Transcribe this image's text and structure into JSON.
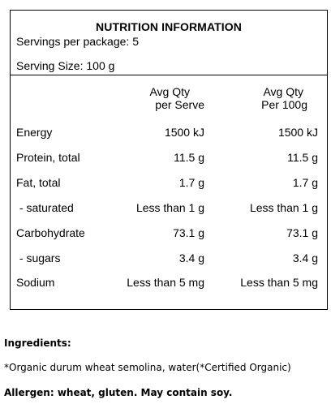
{
  "panel": {
    "title": "NUTRITION INFORMATION",
    "servings_per_package": "Servings per package: 5",
    "serving_size": "Serving Size: 100 g",
    "columns": {
      "per_serve_line1": "Avg Qty",
      "per_serve_line2": "per Serve",
      "per_100g_line1": "Avg Qty",
      "per_100g_line2": "Per 100g"
    },
    "rows": [
      {
        "label": "Energy",
        "per_serve": "1500 kJ",
        "per_100g": "1500 kJ"
      },
      {
        "label": "Protein, total",
        "per_serve": "11.5 g",
        "per_100g": "11.5 g"
      },
      {
        "label": "Fat, total",
        "per_serve": "1.7 g",
        "per_100g": "1.7 g"
      },
      {
        "label": " - saturated",
        "per_serve": "Less than 1 g",
        "per_100g": "Less than 1 g"
      },
      {
        "label": "Carbohydrate",
        "per_serve": "73.1 g",
        "per_100g": "73.1 g"
      },
      {
        "label": " - sugars",
        "per_serve": "3.4 g",
        "per_100g": "3.4 g"
      },
      {
        "label": "Sodium",
        "per_serve": "Less than 5 mg",
        "per_100g": "Less than 5 mg"
      }
    ]
  },
  "ingredients": {
    "heading": "Ingredients:",
    "text": "*Organic durum wheat semolina, water(*Certified Organic)"
  },
  "allergen": {
    "text": "Allergen: wheat, gluten. May contain soy."
  }
}
